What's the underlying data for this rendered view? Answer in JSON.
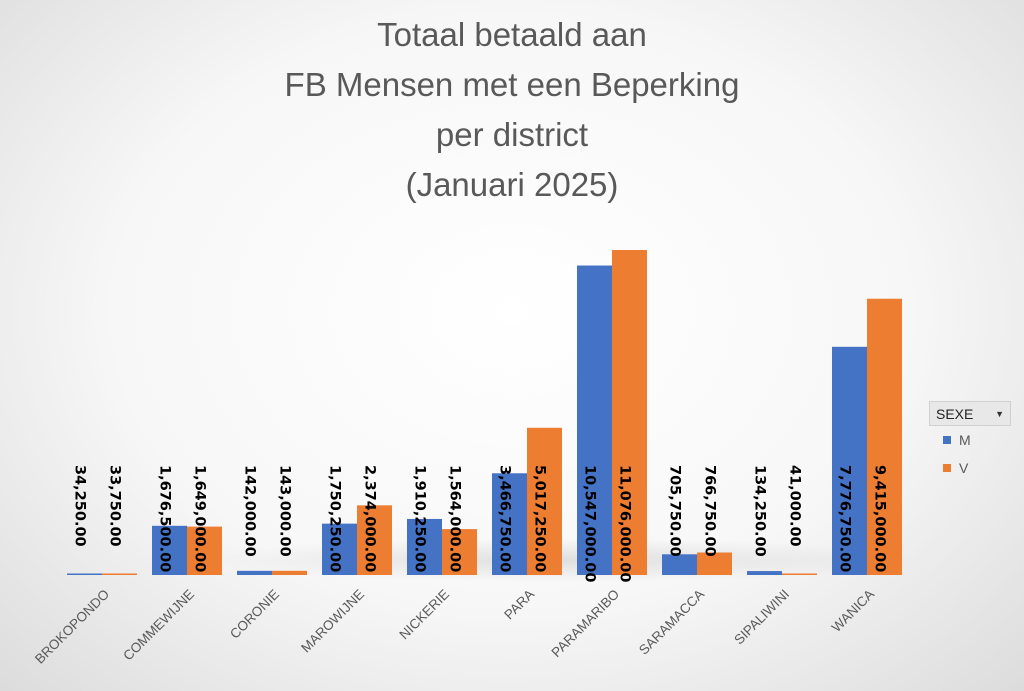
{
  "chart_data": {
    "type": "bar",
    "title_lines": [
      "Totaal betaald aan",
      "FB Mensen met een Beperking",
      "per district",
      "(Januari 2025)"
    ],
    "categories": [
      "BROKOPONDO",
      "COMMEWIJNE",
      "CORONIE",
      "MAROWIJNE",
      "NICKERIE",
      "PARA",
      "PARAMARIBO",
      "SARAMACCA",
      "SIPALIWINI",
      "WANICA"
    ],
    "series": [
      {
        "name": "M",
        "color": "#4472c4",
        "values": [
          34250,
          1676500,
          142000,
          1750250,
          1910250,
          3466750,
          10547000,
          705750,
          134250,
          7776750
        ],
        "labels": [
          "34,250.00",
          "1,676,500.00",
          "142,000.00",
          "1,750,250.00",
          "1,910,250.00",
          "3,466,750.00",
          "10,547,000.00",
          "705,750.00",
          "134,250.00",
          "7,776,750.00"
        ]
      },
      {
        "name": "V",
        "color": "#ed7d31",
        "values": [
          33750,
          1649000,
          143000,
          2374000,
          1564000,
          5017250,
          11076000,
          766750,
          41000,
          9415000
        ],
        "labels": [
          "33,750.00",
          "1,649,000.00",
          "143,000.00",
          "2,374,000.00",
          "1,564,000.00",
          "5,017,250.00",
          "11,076,000.00",
          "766,750.00",
          "41,000.00",
          "9,415,000.00"
        ]
      }
    ],
    "legend": {
      "title": "SEXE",
      "placement": "right"
    },
    "grid": false,
    "ylim": [
      0,
      11076000
    ]
  }
}
